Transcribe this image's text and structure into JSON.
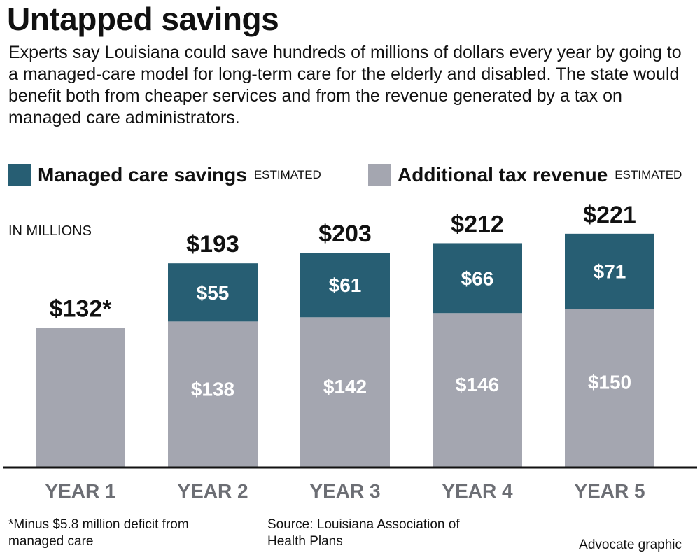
{
  "header": {
    "title": "Untapped savings",
    "subtitle": "Experts say Louisiana could save hundreds of millions of dollars every year by going to a managed-care model for long-term care for the elderly and disabled. The state would benefit both from cheaper services and from the revenue generated by a tax on managed care administrators."
  },
  "legend": {
    "items": [
      {
        "label": "Managed care savings",
        "note": "ESTIMATED",
        "color": "#275e73"
      },
      {
        "label": "Additional tax revenue",
        "note": "ESTIMATED",
        "color": "#a4a6b0"
      }
    ]
  },
  "colors": {
    "savings": "#275e73",
    "tax": "#a4a6b0",
    "text": "#111111",
    "axis_label": "#6c6e74",
    "bar_label": "#ffffff"
  },
  "chart_data": {
    "type": "bar",
    "stacked": true,
    "unit_label": "IN MILLIONS",
    "categories": [
      "YEAR 1",
      "YEAR 2",
      "YEAR 3",
      "YEAR 4",
      "YEAR 5"
    ],
    "series": [
      {
        "name": "Additional tax revenue",
        "values": [
          132,
          138,
          142,
          146,
          150
        ],
        "labels": [
          "",
          "$138",
          "$142",
          "$146",
          "$150"
        ]
      },
      {
        "name": "Managed care savings",
        "values": [
          0,
          55,
          61,
          66,
          71
        ],
        "labels": [
          "",
          "$55",
          "$61",
          "$66",
          "$71"
        ]
      }
    ],
    "totals": [
      132,
      193,
      203,
      212,
      221
    ],
    "total_labels": [
      "$132*",
      "$193",
      "$203",
      "$212",
      "$221"
    ],
    "ylim": [
      0,
      250
    ],
    "grid": false
  },
  "footer": {
    "footnote": "*Minus $5.8 million deficit from managed care",
    "source": "Source: Louisiana Association of Health Plans",
    "credit": "Advocate graphic"
  }
}
